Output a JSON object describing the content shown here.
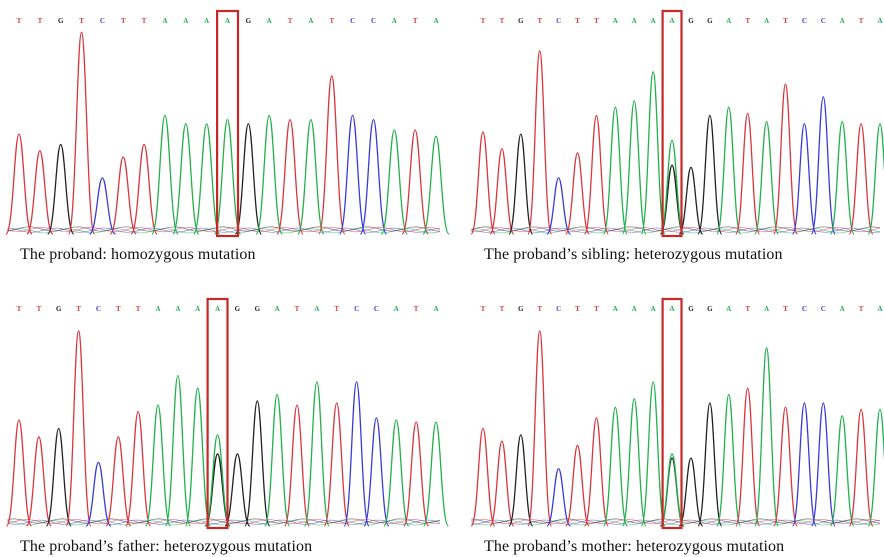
{
  "colors": {
    "A": "#22b14c",
    "C": "#3b3bd6",
    "G": "#222222",
    "T": "#d9363e",
    "highlight": "#c62828"
  },
  "panels": [
    {
      "id": "proband",
      "sequence": [
        "T",
        "T",
        "G",
        "T",
        "C",
        "T",
        "T",
        "A",
        "A",
        "A",
        "A",
        "G",
        "A",
        "T",
        "A",
        "T",
        "C",
        "C",
        "A",
        "T",
        "A"
      ],
      "highlight_index": 10,
      "peak_levels": [
        0.48,
        0.4,
        0.43,
        0.97,
        0.27,
        0.37,
        0.43,
        0.57,
        0.53,
        0.53,
        0.55,
        0.53,
        0.57,
        0.55,
        0.55,
        0.76,
        0.57,
        0.55,
        0.5,
        0.5,
        0.47
      ],
      "secondary": [],
      "caption": "The proband: homozygous mutation"
    },
    {
      "id": "sibling",
      "sequence": [
        "T",
        "T",
        "G",
        "T",
        "C",
        "T",
        "T",
        "A",
        "A",
        "A",
        "A",
        "G",
        "G",
        "A",
        "T",
        "A",
        "T",
        "C",
        "C",
        "A",
        "T",
        "A"
      ],
      "highlight_index": 10,
      "peak_levels": [
        0.49,
        0.41,
        0.48,
        0.88,
        0.27,
        0.39,
        0.57,
        0.61,
        0.64,
        0.78,
        0.45,
        0.32,
        0.57,
        0.61,
        0.58,
        0.54,
        0.72,
        0.53,
        0.66,
        0.54,
        0.53,
        0.53
      ],
      "secondary": [
        {
          "index": 10,
          "base": "G",
          "level": 0.33
        }
      ],
      "caption": "The proband’s sibling: heterozygous mutation"
    },
    {
      "id": "father",
      "sequence": [
        "T",
        "T",
        "G",
        "T",
        "C",
        "T",
        "T",
        "A",
        "A",
        "A",
        "A",
        "G",
        "G",
        "A",
        "T",
        "A",
        "T",
        "C",
        "C",
        "A",
        "T",
        "A"
      ],
      "highlight_index": 10,
      "peak_levels": [
        0.5,
        0.42,
        0.46,
        0.92,
        0.3,
        0.42,
        0.54,
        0.57,
        0.71,
        0.65,
        0.43,
        0.34,
        0.59,
        0.62,
        0.57,
        0.68,
        0.58,
        0.68,
        0.51,
        0.5,
        0.49,
        0.49
      ],
      "secondary": [
        {
          "index": 10,
          "base": "G",
          "level": 0.34
        }
      ],
      "caption": "The proband’s father: heterozygous mutation"
    },
    {
      "id": "mother",
      "sequence": [
        "T",
        "T",
        "G",
        "T",
        "C",
        "T",
        "T",
        "A",
        "A",
        "A",
        "A",
        "G",
        "G",
        "A",
        "T",
        "A",
        "T",
        "C",
        "C",
        "A",
        "T",
        "A"
      ],
      "highlight_index": 10,
      "peak_levels": [
        0.46,
        0.4,
        0.43,
        0.92,
        0.27,
        0.38,
        0.51,
        0.56,
        0.6,
        0.68,
        0.34,
        0.32,
        0.58,
        0.62,
        0.65,
        0.84,
        0.56,
        0.58,
        0.58,
        0.52,
        0.55,
        0.55
      ],
      "secondary": [
        {
          "index": 10,
          "base": "G",
          "level": 0.32
        }
      ],
      "caption": "The proband’s mother: heterozygous mutation"
    }
  ]
}
